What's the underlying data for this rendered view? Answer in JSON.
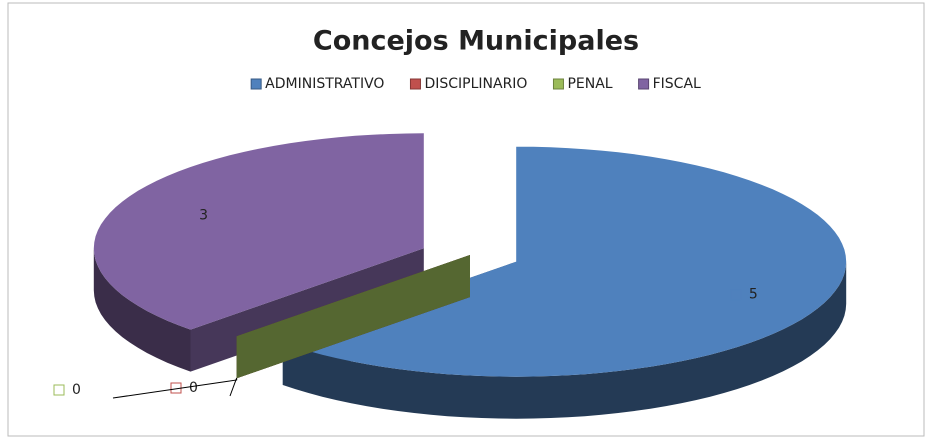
{
  "chart_data": {
    "type": "pie",
    "title": "Concejos Municipales",
    "categories": [
      "ADMINISTRATIVO",
      "DISCIPLINARIO",
      "PENAL",
      "FISCAL"
    ],
    "values": [
      5,
      0,
      0,
      3
    ],
    "colors": [
      "#4f81bd",
      "#c0504d",
      "#9bbb59",
      "#8064a2"
    ],
    "legend": "top"
  }
}
